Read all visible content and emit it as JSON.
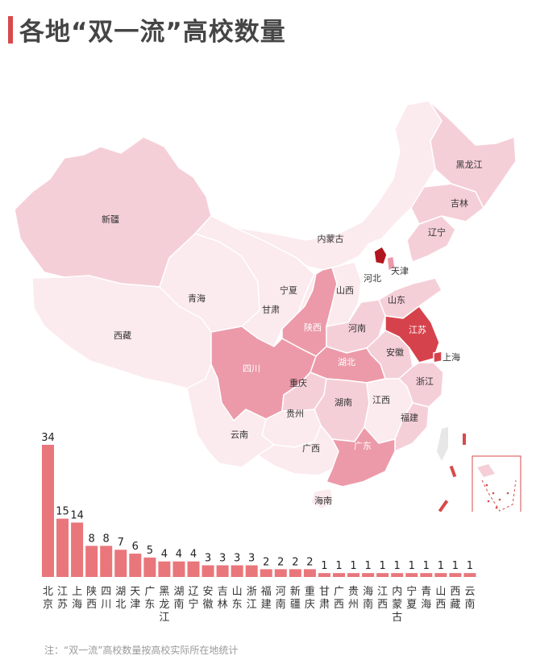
{
  "title": "各地“双一流”高校数量",
  "note": "注：“双一流”高校数量按高校实际所在地统计",
  "colors": {
    "accent": "#d84a4a",
    "bar": "#e9767b",
    "map_levels": [
      "#fbeaee",
      "#f5cfd8",
      "#ec9aa9",
      "#d6424c",
      "#b0161d"
    ],
    "border": "#ffffff"
  },
  "chart_data": {
    "type": "bar",
    "categories": [
      "北京",
      "江苏",
      "上海",
      "陕西",
      "四川",
      "湖北",
      "天津",
      "广东",
      "黑龙江",
      "湖南",
      "辽宁",
      "安徽",
      "吉林",
      "山东",
      "浙江",
      "福建",
      "河南",
      "新疆",
      "重庆",
      "甘肃",
      "广西",
      "贵州",
      "海南",
      "江西",
      "内蒙古",
      "宁夏",
      "青海",
      "山西",
      "西藏",
      "云南"
    ],
    "values": [
      34,
      15,
      14,
      8,
      8,
      7,
      6,
      5,
      4,
      4,
      4,
      3,
      3,
      3,
      3,
      2,
      2,
      2,
      2,
      1,
      1,
      1,
      1,
      1,
      1,
      1,
      1,
      1,
      1,
      1
    ],
    "ylim": [
      0,
      34
    ]
  },
  "map": {
    "provinces": [
      {
        "name": "新疆",
        "count": 2
      },
      {
        "name": "西藏",
        "count": 1
      },
      {
        "name": "青海",
        "count": 1
      },
      {
        "name": "甘肃",
        "count": 1
      },
      {
        "name": "内蒙古",
        "count": 1
      },
      {
        "name": "宁夏",
        "count": 1
      },
      {
        "name": "陕西",
        "count": 8
      },
      {
        "name": "山西",
        "count": 1
      },
      {
        "name": "河北",
        "count": 0
      },
      {
        "name": "北京",
        "count": 34
      },
      {
        "name": "天津",
        "count": 6
      },
      {
        "name": "辽宁",
        "count": 4
      },
      {
        "name": "吉林",
        "count": 3
      },
      {
        "name": "黑龙江",
        "count": 4
      },
      {
        "name": "山东",
        "count": 3
      },
      {
        "name": "河南",
        "count": 2
      },
      {
        "name": "江苏",
        "count": 15
      },
      {
        "name": "上海",
        "count": 14
      },
      {
        "name": "安徽",
        "count": 3
      },
      {
        "name": "湖北",
        "count": 7
      },
      {
        "name": "四川",
        "count": 8
      },
      {
        "name": "重庆",
        "count": 2
      },
      {
        "name": "浙江",
        "count": 3
      },
      {
        "name": "湖南",
        "count": 4
      },
      {
        "name": "江西",
        "count": 1
      },
      {
        "name": "福建",
        "count": 2
      },
      {
        "name": "贵州",
        "count": 1
      },
      {
        "name": "云南",
        "count": 1
      },
      {
        "name": "广西",
        "count": 1
      },
      {
        "name": "广东",
        "count": 5
      },
      {
        "name": "海南",
        "count": 1
      }
    ]
  }
}
